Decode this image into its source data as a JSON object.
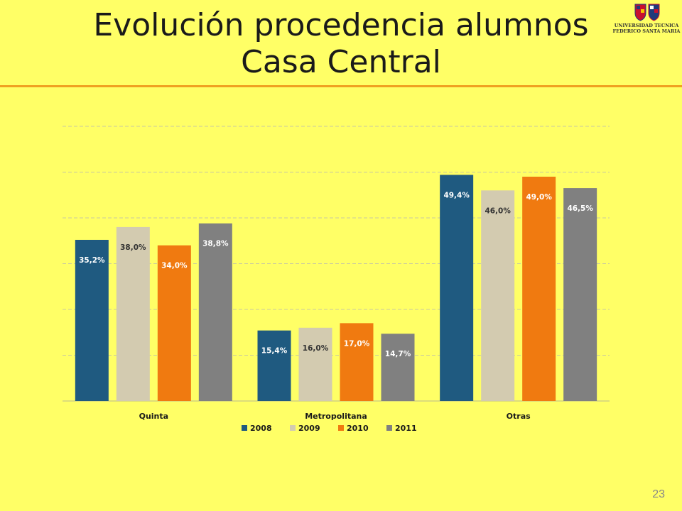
{
  "slide": {
    "title_line1": "Evolución procedencia alumnos",
    "title_line2": "Casa Central",
    "page_number": "23",
    "logo_line1": "UNIVERSIDAD TECNICA",
    "logo_line2": "FEDERICO SANTA MARIA"
  },
  "chart_data": {
    "type": "bar",
    "categories": [
      "Quinta",
      "Metropolitana",
      "Otras"
    ],
    "series": [
      {
        "name": "2008",
        "color": "#1f5a80",
        "values": [
          35.2,
          15.4,
          49.4
        ],
        "labels": [
          "35,2%",
          "15,4%",
          "49,4%"
        ]
      },
      {
        "name": "2009",
        "color": "#d3cbb0",
        "values": [
          38.0,
          16.0,
          46.0
        ],
        "labels": [
          "38,0%",
          "16,0%",
          "46,0%"
        ]
      },
      {
        "name": "2010",
        "color": "#f07a10",
        "values": [
          34.0,
          17.0,
          49.0
        ],
        "labels": [
          "34,0%",
          "17,0%",
          "49,0%"
        ]
      },
      {
        "name": "2011",
        "color": "#808080",
        "values": [
          38.8,
          14.7,
          46.5
        ],
        "labels": [
          "38,8%",
          "14,7%",
          "46,5%"
        ]
      }
    ],
    "ylim": [
      0,
      60
    ],
    "grid": true,
    "legend_position": "bottom",
    "label_color_dark_bars": "#ffffff",
    "label_color_light_bars": "#333333"
  }
}
